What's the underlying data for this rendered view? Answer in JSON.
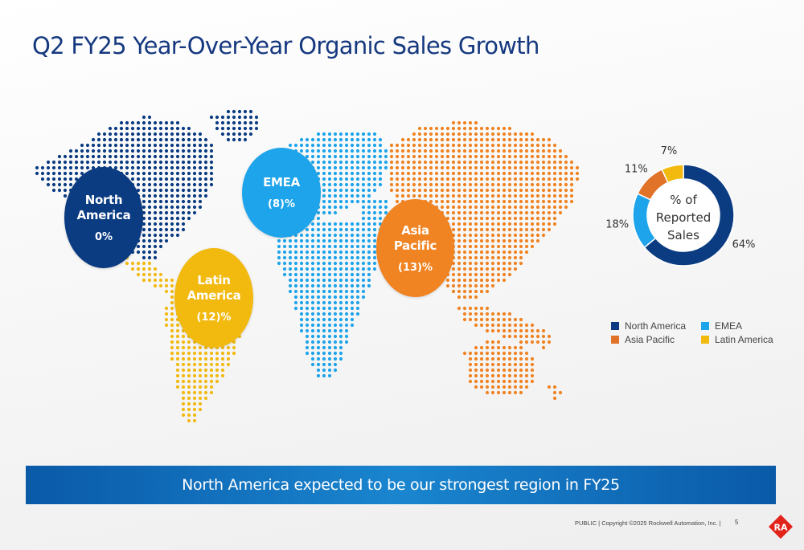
{
  "title": "Q2 FY25 Year-Over-Year Organic Sales Growth",
  "regions": [
    {
      "name_line1": "North",
      "name_line2": "America",
      "growth": "0%",
      "color": "#0b3c82"
    },
    {
      "name_line1": "EMEA",
      "name_line2": "",
      "growth": "(8)%",
      "color": "#1ea4ea"
    },
    {
      "name_line1": "Latin",
      "name_line2": "America",
      "growth": "(12)%",
      "color": "#f2b90f"
    },
    {
      "name_line1": "Asia",
      "name_line2": "Pacific",
      "growth": "(13)%",
      "color": "#f08322"
    }
  ],
  "chart_data": {
    "type": "pie",
    "title": "% of Reported Sales",
    "center_label_lines": [
      "% of",
      "Reported",
      "Sales"
    ],
    "categories": [
      "North America",
      "EMEA",
      "Asia Pacific",
      "Latin America"
    ],
    "values": [
      64,
      18,
      11,
      7
    ],
    "value_labels": [
      "64%",
      "18%",
      "11%",
      "7%"
    ],
    "colors": [
      "#0b3c82",
      "#1ea4ea",
      "#e07328",
      "#f2b90f"
    ],
    "legend": {
      "placement": "bottom",
      "entries": [
        {
          "label": "North America",
          "color": "#0b3c82"
        },
        {
          "label": "EMEA",
          "color": "#1ea4ea"
        },
        {
          "label": "Asia Pacific",
          "color": "#e07328"
        },
        {
          "label": "Latin America",
          "color": "#f2b90f"
        }
      ]
    }
  },
  "banner_text": "North America expected to be our strongest region in FY25",
  "footer_text": "PUBLIC | Copyright ©2025 Rockwell Automation, Inc. |",
  "page_number": "5",
  "logo_text": "RA",
  "logo_color": "#e2231a"
}
